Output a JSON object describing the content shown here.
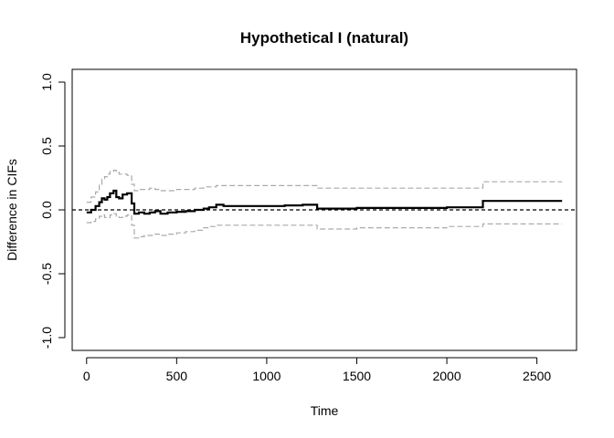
{
  "chart_data": {
    "type": "line",
    "title": "Hypothetical I (natural)",
    "xlabel": "Time",
    "ylabel": "Difference in CIFs",
    "xlim": [
      -80,
      2720
    ],
    "ylim": [
      -1.1,
      1.1
    ],
    "x_ticks": [
      0,
      500,
      1000,
      1500,
      2000,
      2500
    ],
    "x_tick_labels": [
      "0",
      "500",
      "1000",
      "1500",
      "2000",
      "2500"
    ],
    "y_ticks": [
      -1.0,
      -0.5,
      0.0,
      0.5,
      1.0
    ],
    "y_tick_labels": [
      "-1.0",
      "-0.5",
      "0.0",
      "0.5",
      "1.0"
    ],
    "grid": false,
    "reference_line": {
      "y": 0,
      "style": "dashed",
      "color": "#000000"
    },
    "series": [
      {
        "role": "estimate",
        "step": true,
        "color": "#000000",
        "style": "solid",
        "x": [
          0,
          25,
          50,
          70,
          85,
          100,
          115,
          130,
          150,
          165,
          180,
          200,
          225,
          250,
          265,
          290,
          320,
          350,
          380,
          410,
          450,
          500,
          550,
          600,
          650,
          680,
          720,
          760,
          800,
          1100,
          1200,
          1280,
          1500,
          2000,
          2200,
          2640
        ],
        "y": [
          -0.02,
          0.0,
          0.03,
          0.06,
          0.09,
          0.08,
          0.1,
          0.13,
          0.15,
          0.1,
          0.09,
          0.12,
          0.13,
          0.05,
          -0.03,
          -0.02,
          -0.03,
          -0.02,
          -0.01,
          -0.03,
          -0.02,
          -0.015,
          -0.01,
          0.0,
          0.01,
          0.02,
          0.04,
          0.03,
          0.03,
          0.035,
          0.04,
          0.01,
          0.015,
          0.02,
          0.07,
          0.07
        ]
      },
      {
        "role": "upper bound",
        "step": true,
        "color": "#aaaaaa",
        "style": "dashed",
        "x": [
          0,
          25,
          50,
          70,
          85,
          100,
          115,
          130,
          150,
          165,
          180,
          200,
          225,
          250,
          265,
          290,
          320,
          350,
          380,
          410,
          450,
          500,
          550,
          600,
          650,
          680,
          720,
          760,
          800,
          1100,
          1200,
          1280,
          1500,
          2000,
          2200,
          2640
        ],
        "y": [
          0.06,
          0.1,
          0.14,
          0.2,
          0.24,
          0.26,
          0.28,
          0.3,
          0.31,
          0.3,
          0.28,
          0.28,
          0.27,
          0.2,
          0.15,
          0.16,
          0.16,
          0.17,
          0.16,
          0.15,
          0.15,
          0.16,
          0.16,
          0.17,
          0.18,
          0.18,
          0.19,
          0.19,
          0.19,
          0.19,
          0.19,
          0.17,
          0.17,
          0.17,
          0.22,
          0.22
        ]
      },
      {
        "role": "lower bound",
        "step": true,
        "color": "#aaaaaa",
        "style": "dashed",
        "x": [
          0,
          25,
          50,
          70,
          85,
          100,
          115,
          130,
          150,
          165,
          180,
          200,
          225,
          250,
          265,
          290,
          320,
          350,
          380,
          410,
          450,
          500,
          550,
          600,
          650,
          680,
          720,
          760,
          800,
          1100,
          1200,
          1280,
          1500,
          2000,
          2200,
          2640
        ],
        "y": [
          -0.1,
          -0.09,
          -0.07,
          -0.05,
          -0.04,
          -0.06,
          -0.06,
          -0.04,
          -0.03,
          -0.05,
          -0.06,
          -0.05,
          -0.04,
          -0.12,
          -0.22,
          -0.21,
          -0.2,
          -0.2,
          -0.19,
          -0.2,
          -0.19,
          -0.18,
          -0.17,
          -0.16,
          -0.14,
          -0.13,
          -0.12,
          -0.12,
          -0.12,
          -0.12,
          -0.12,
          -0.15,
          -0.14,
          -0.13,
          -0.11,
          -0.11
        ]
      }
    ]
  }
}
